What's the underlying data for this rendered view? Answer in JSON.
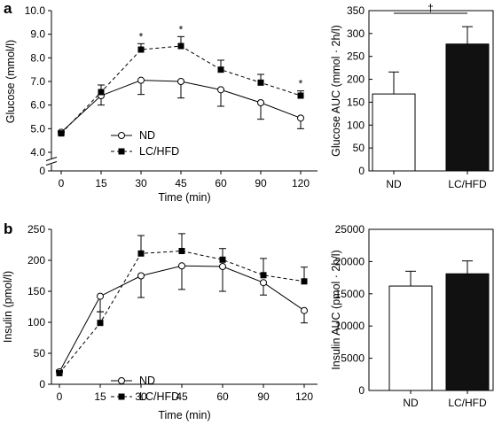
{
  "chart_data": [
    {
      "panel": "a",
      "type": "line",
      "xlabel": "Time (min)",
      "ylabel": "Glucose (mmol/l)",
      "x": [
        0,
        15,
        30,
        45,
        60,
        90,
        120
      ],
      "x_tick_labels": [
        "0",
        "15",
        "30",
        "45",
        "60",
        "90",
        "120"
      ],
      "y_tick_labels": [
        "4.0",
        "5.0",
        "6.0",
        "7.0",
        "8.0",
        "9.0",
        "10.0"
      ],
      "y_break_label": "0",
      "ylim": [
        4.0,
        10.0
      ],
      "legend_placement": "bottom-left",
      "series": [
        {
          "name": "ND",
          "marker": "open-circle",
          "line": "solid",
          "values": [
            4.85,
            6.4,
            7.05,
            7.0,
            6.65,
            6.1,
            5.45
          ],
          "error": [
            0.1,
            0.4,
            0.6,
            0.7,
            0.7,
            0.7,
            0.45
          ]
        },
        {
          "name": "LC/HFD",
          "marker": "filled-square",
          "line": "dashed",
          "values": [
            4.8,
            6.55,
            8.35,
            8.5,
            7.5,
            6.95,
            6.4
          ],
          "error": [
            0.1,
            0.3,
            0.25,
            0.4,
            0.4,
            0.35,
            0.2
          ]
        }
      ],
      "significance": [
        {
          "x": 30,
          "label": "*"
        },
        {
          "x": 45,
          "label": "*"
        },
        {
          "x": 120,
          "label": "*"
        }
      ]
    },
    {
      "panel": "a",
      "type": "bar",
      "ylabel": "Glucose AUC (mmol · 2h/l)",
      "categories": [
        "ND",
        "LC/HFD"
      ],
      "values": [
        168,
        277
      ],
      "error": [
        48,
        38
      ],
      "ylim": [
        0,
        350
      ],
      "y_tick_labels": [
        "0",
        "50",
        "100",
        "150",
        "200",
        "250",
        "300",
        "350"
      ],
      "bar_colors": [
        "#ffffff",
        "#111111"
      ],
      "significance": "†"
    },
    {
      "panel": "b",
      "type": "line",
      "xlabel": "Time (min)",
      "ylabel": "Insulin (pmol/l)",
      "x": [
        0,
        15,
        30,
        45,
        60,
        90,
        120
      ],
      "x_tick_labels": [
        "0",
        "15",
        "30",
        "45",
        "60",
        "90",
        "120"
      ],
      "y_tick_labels": [
        "0",
        "50",
        "100",
        "150",
        "200",
        "250"
      ],
      "ylim": [
        0,
        250
      ],
      "legend_placement": "bottom-left",
      "series": [
        {
          "name": "ND",
          "marker": "open-circle",
          "line": "solid",
          "values": [
            20,
            142,
            175,
            191,
            190,
            164,
            119
          ],
          "error": [
            3,
            25,
            35,
            38,
            40,
            20,
            20
          ]
        },
        {
          "name": "LC/HFD",
          "marker": "filled-square",
          "line": "dashed",
          "values": [
            18,
            99,
            211,
            215,
            201,
            176,
            166
          ],
          "error": [
            3,
            18,
            29,
            28,
            18,
            27,
            23
          ]
        }
      ]
    },
    {
      "panel": "b",
      "type": "bar",
      "ylabel": "Insulin AUC (pmol · 2h/l)",
      "categories": [
        "ND",
        "LC/HFD"
      ],
      "values": [
        16200,
        18100
      ],
      "error": [
        2300,
        2000
      ],
      "ylim": [
        0,
        25000
      ],
      "y_tick_labels": [
        "0",
        "5000",
        "10000",
        "15000",
        "20000",
        "25000"
      ],
      "bar_colors": [
        "#ffffff",
        "#111111"
      ]
    }
  ]
}
